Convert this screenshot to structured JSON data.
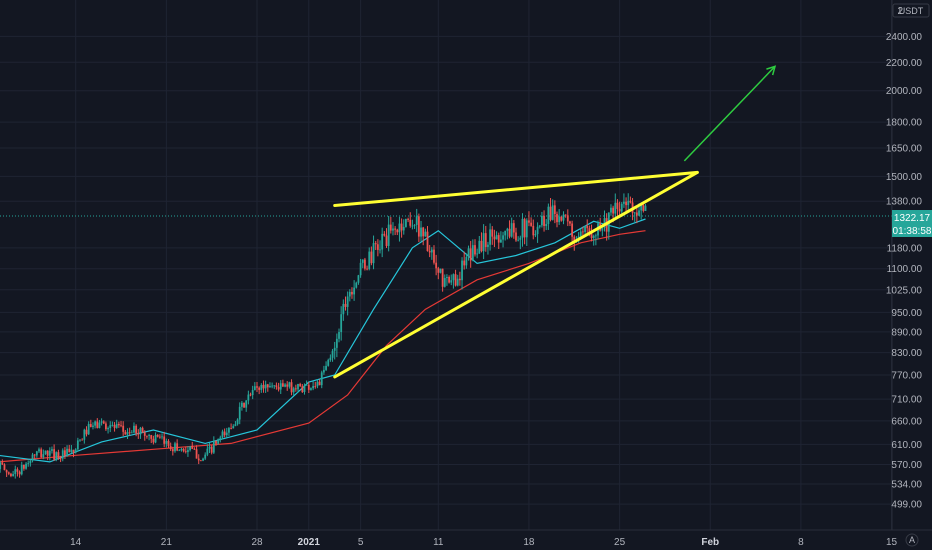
{
  "currency_label": "USDT",
  "scale_mode_label": "A",
  "colors": {
    "background": "#131722",
    "up": "#26a69a",
    "down": "#ef5350",
    "ma_fast": "#26c6da",
    "ma_slow": "#e53935",
    "trendline": "#ffff33",
    "arrow": "#2ecc40",
    "badge": "#26a69a"
  },
  "chart_data": {
    "type": "candlestick",
    "y_scale": "log",
    "ylim": [
      470,
      2640
    ],
    "x_start": "2020-12-08",
    "x_end": "2021-02-16",
    "y_ticks": [
      "2400.00",
      "2200.00",
      "2000.00",
      "1800.00",
      "1650.00",
      "1500.00",
      "1380.00",
      "1180.00",
      "1100.00",
      "1025.00",
      "950.00",
      "890.00",
      "830.00",
      "770.00",
      "710.00",
      "660.00",
      "610.00",
      "570.00",
      "534.00",
      "499.00"
    ],
    "y_ticks_partial": [
      "2"
    ],
    "x_ticks": [
      {
        "label": "14",
        "date": "2020-12-14"
      },
      {
        "label": "21",
        "date": "2020-12-21"
      },
      {
        "label": "28",
        "date": "2020-12-28"
      },
      {
        "label": "2021",
        "date": "2021-01-01",
        "major": true
      },
      {
        "label": "5",
        "date": "2021-01-05"
      },
      {
        "label": "11",
        "date": "2021-01-11"
      },
      {
        "label": "18",
        "date": "2021-01-18"
      },
      {
        "label": "25",
        "date": "2021-01-25"
      },
      {
        "label": "Feb",
        "date": "2021-02-01",
        "major": true
      },
      {
        "label": "8",
        "date": "2021-02-08"
      },
      {
        "label": "15",
        "date": "2021-02-15"
      }
    ],
    "last_price": "1322.17",
    "last_price_value": 1322.17,
    "countdown": "01:38:58",
    "price_path": [
      [
        "2020-12-08",
        575
      ],
      [
        "2020-12-09",
        552
      ],
      [
        "2020-12-10",
        560
      ],
      [
        "2020-12-11",
        590
      ],
      [
        "2020-12-12",
        592
      ],
      [
        "2020-12-13",
        588
      ],
      [
        "2020-12-14",
        593
      ],
      [
        "2020-12-15",
        640
      ],
      [
        "2020-12-16",
        655
      ],
      [
        "2020-12-17",
        648
      ],
      [
        "2020-12-18",
        635
      ],
      [
        "2020-12-19",
        640
      ],
      [
        "2020-12-20",
        624
      ],
      [
        "2020-12-21",
        614
      ],
      [
        "2020-12-22",
        602
      ],
      [
        "2020-12-23",
        598
      ],
      [
        "2020-12-24",
        582
      ],
      [
        "2020-12-25",
        612
      ],
      [
        "2020-12-26",
        640
      ],
      [
        "2020-12-27",
        690
      ],
      [
        "2020-12-28",
        735
      ],
      [
        "2020-12-29",
        745
      ],
      [
        "2020-12-30",
        740
      ],
      [
        "2020-12-31",
        738
      ],
      [
        "2021-01-01",
        740
      ],
      [
        "2021-01-02",
        752
      ],
      [
        "2021-01-03",
        830
      ],
      [
        "2021-01-04",
        1000
      ],
      [
        "2021-01-05",
        1080
      ],
      [
        "2021-01-06",
        1150
      ],
      [
        "2021-01-07",
        1220
      ],
      [
        "2021-01-08",
        1260
      ],
      [
        "2021-01-09",
        1300
      ],
      [
        "2021-01-10",
        1250
      ],
      [
        "2021-01-11",
        1080
      ],
      [
        "2021-01-12",
        1040
      ],
      [
        "2021-01-13",
        1100
      ],
      [
        "2021-01-14",
        1180
      ],
      [
        "2021-01-15",
        1220
      ],
      [
        "2021-01-16",
        1240
      ],
      [
        "2021-01-17",
        1250
      ],
      [
        "2021-01-18",
        1260
      ],
      [
        "2021-01-19",
        1280
      ],
      [
        "2021-01-20",
        1350
      ],
      [
        "2021-01-21",
        1280
      ],
      [
        "2021-01-22",
        1200
      ],
      [
        "2021-01-23",
        1260
      ],
      [
        "2021-01-24",
        1280
      ],
      [
        "2021-01-25",
        1340
      ],
      [
        "2021-01-26",
        1370
      ],
      [
        "2021-01-27",
        1322
      ]
    ],
    "ma_fast": [
      [
        "2020-12-08",
        588
      ],
      [
        "2020-12-12",
        575
      ],
      [
        "2020-12-16",
        615
      ],
      [
        "2020-12-20",
        640
      ],
      [
        "2020-12-24",
        612
      ],
      [
        "2020-12-28",
        640
      ],
      [
        "2021-01-01",
        752
      ],
      [
        "2021-01-03",
        770
      ],
      [
        "2021-01-06",
        960
      ],
      [
        "2021-01-09",
        1180
      ],
      [
        "2021-01-11",
        1250
      ],
      [
        "2021-01-14",
        1120
      ],
      [
        "2021-01-17",
        1150
      ],
      [
        "2021-01-20",
        1200
      ],
      [
        "2021-01-23",
        1290
      ],
      [
        "2021-01-25",
        1260
      ],
      [
        "2021-01-27",
        1300
      ]
    ],
    "ma_slow": [
      [
        "2020-12-08",
        575
      ],
      [
        "2020-12-14",
        588
      ],
      [
        "2020-12-20",
        600
      ],
      [
        "2020-12-26",
        612
      ],
      [
        "2021-01-01",
        655
      ],
      [
        "2021-01-04",
        720
      ],
      [
        "2021-01-07",
        850
      ],
      [
        "2021-01-10",
        960
      ],
      [
        "2021-01-14",
        1060
      ],
      [
        "2021-01-18",
        1120
      ],
      [
        "2021-01-22",
        1200
      ],
      [
        "2021-01-25",
        1235
      ],
      [
        "2021-01-27",
        1250
      ]
    ],
    "annotations": {
      "upper_trendline": [
        [
          "2021-01-03",
          1360
        ],
        [
          "2021-01-31",
          1520
        ]
      ],
      "lower_trendline": [
        [
          "2021-01-03",
          765
        ],
        [
          "2021-01-31",
          1520
        ]
      ],
      "arrow": [
        [
          "2021-01-30",
          1580
        ],
        [
          "2021-02-06",
          2170
        ]
      ]
    }
  }
}
